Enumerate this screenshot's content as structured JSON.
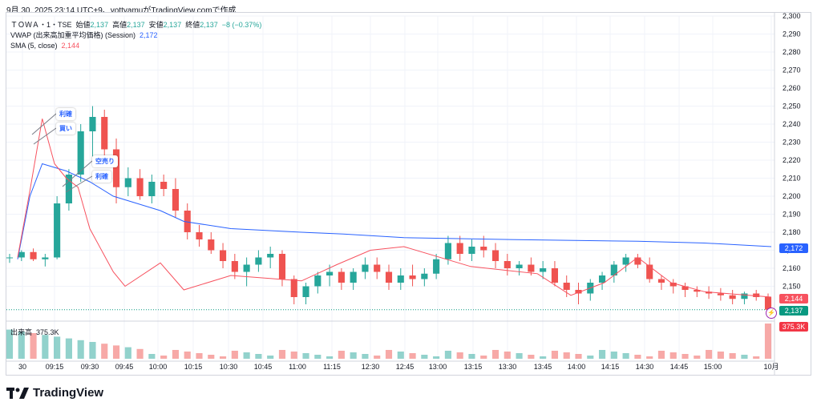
{
  "caption": "9月 30, 2025 23:14 UTC+9、yottyamuがTradingView.comで作成",
  "legend": {
    "symbol": "ＴＯＷＡ・1・TSE",
    "open_label": "始値",
    "open": "2,137",
    "high_label": "高値",
    "high": "2,137",
    "low_label": "安値",
    "low": "2,137",
    "close_label": "終値",
    "close": "2,137",
    "change": "−8 (−0.37%)",
    "vwap_label": "VWAP (出来高加重平均価格) (Session)",
    "vwap_value": "2,172",
    "sma_label": "SMA (5, close)",
    "sma_value": "2,144"
  },
  "y_ticks": [
    "2,300",
    "2,290",
    "2,280",
    "2,270",
    "2,260",
    "2,250",
    "2,240",
    "2,230",
    "2,220",
    "2,210",
    "2,200",
    "2,190",
    "2,180",
    "2,170",
    "2,160",
    "2,150"
  ],
  "x_ticks": [
    "30",
    "09:15",
    "09:30",
    "09:45",
    "10:00",
    "10:15",
    "10:30",
    "10:45",
    "11:00",
    "11:15",
    "12:30",
    "12:45",
    "13:00",
    "13:15",
    "13:30",
    "13:45",
    "14:00",
    "14:15",
    "14:30",
    "14:45",
    "15:00",
    "10月"
  ],
  "price_tags": {
    "vwap": "2,172",
    "sma": "2,144",
    "last": "2,137",
    "volume": "375.3K",
    "vwap_color": "#2962ff",
    "sma_color": "#f7525f",
    "last_color": "#089981",
    "volume_color": "#f23645"
  },
  "annotations": [
    "利確",
    "買い",
    "空売り",
    "利確"
  ],
  "volume": {
    "label": "出来高",
    "value": "375.3K"
  },
  "brand": "TradingView",
  "colors": {
    "up": "#26a69a",
    "down": "#ef5350",
    "vwap": "#2962ff",
    "sma": "#f7525f"
  },
  "chart_data": {
    "type": "candlestick",
    "title": "ＴＯＷＡ・1・TSE",
    "y_range": [
      2140,
      2300
    ],
    "series": [
      {
        "name": "VWAP (出来高加重平均価格) (Session)",
        "x": [
          "09:00",
          "09:05",
          "09:10",
          "09:20",
          "09:30",
          "09:40",
          "09:50",
          "10:00",
          "10:10",
          "10:30",
          "11:00",
          "11:30",
          "12:45",
          "13:30",
          "14:30",
          "15:00",
          "15:30"
        ],
        "values": [
          2165,
          2200,
          2218,
          2214,
          2208,
          2200,
          2196,
          2192,
          2186,
          2182,
          2180,
          2179,
          2177,
          2176,
          2175,
          2174,
          2172
        ]
      },
      {
        "name": "SMA (5, close)",
        "x": [
          "09:00",
          "09:05",
          "09:10",
          "09:15",
          "09:20",
          "09:25",
          "09:30",
          "09:40",
          "09:45",
          "10:00",
          "10:10",
          "10:30",
          "11:00",
          "11:15",
          "12:30",
          "12:45",
          "13:15",
          "13:45",
          "14:00",
          "14:15",
          "14:30",
          "14:45",
          "15:00",
          "15:30"
        ],
        "values": [
          2166,
          2203,
          2243,
          2218,
          2210,
          2205,
          2182,
          2158,
          2150,
          2163,
          2148,
          2156,
          2153,
          2162,
          2170,
          2172,
          2161,
          2157,
          2145,
          2152,
          2166,
          2152,
          2147,
          2144
        ]
      }
    ],
    "candles": [
      [
        2166,
        2168,
        2163,
        2166
      ],
      [
        2166,
        2170,
        2164,
        2169
      ],
      [
        2169,
        2171,
        2164,
        2165
      ],
      [
        2165,
        2168,
        2161,
        2166
      ],
      [
        2166,
        2200,
        2165,
        2196
      ],
      [
        2196,
        2215,
        2192,
        2212
      ],
      [
        2212,
        2240,
        2208,
        2236
      ],
      [
        2236,
        2250,
        2222,
        2244
      ],
      [
        2244,
        2248,
        2220,
        2226
      ],
      [
        2226,
        2232,
        2196,
        2205
      ],
      [
        2205,
        2216,
        2200,
        2210
      ],
      [
        2210,
        2215,
        2198,
        2200
      ],
      [
        2200,
        2212,
        2196,
        2208
      ],
      [
        2208,
        2212,
        2200,
        2204
      ],
      [
        2204,
        2210,
        2188,
        2192
      ],
      [
        2192,
        2196,
        2176,
        2180
      ],
      [
        2180,
        2184,
        2172,
        2176
      ],
      [
        2176,
        2180,
        2168,
        2170
      ],
      [
        2170,
        2174,
        2160,
        2164
      ],
      [
        2164,
        2168,
        2154,
        2158
      ],
      [
        2158,
        2166,
        2150,
        2162
      ],
      [
        2162,
        2170,
        2158,
        2166
      ],
      [
        2166,
        2172,
        2160,
        2168
      ],
      [
        2168,
        2170,
        2150,
        2154
      ],
      [
        2154,
        2156,
        2140,
        2144
      ],
      [
        2144,
        2152,
        2140,
        2150
      ],
      [
        2150,
        2158,
        2146,
        2156
      ],
      [
        2156,
        2162,
        2150,
        2158
      ],
      [
        2158,
        2160,
        2148,
        2152
      ],
      [
        2152,
        2160,
        2148,
        2158
      ],
      [
        2158,
        2166,
        2154,
        2162
      ],
      [
        2162,
        2166,
        2154,
        2158
      ],
      [
        2158,
        2162,
        2148,
        2152
      ],
      [
        2152,
        2160,
        2148,
        2156
      ],
      [
        2156,
        2162,
        2150,
        2154
      ],
      [
        2154,
        2160,
        2150,
        2157
      ],
      [
        2157,
        2168,
        2154,
        2165
      ],
      [
        2165,
        2178,
        2162,
        2174
      ],
      [
        2174,
        2178,
        2164,
        2168
      ],
      [
        2168,
        2176,
        2164,
        2172
      ],
      [
        2172,
        2178,
        2166,
        2170
      ],
      [
        2170,
        2174,
        2160,
        2164
      ],
      [
        2164,
        2168,
        2156,
        2160
      ],
      [
        2160,
        2164,
        2156,
        2162
      ],
      [
        2162,
        2166,
        2156,
        2158
      ],
      [
        2158,
        2164,
        2154,
        2160
      ],
      [
        2160,
        2164,
        2150,
        2152
      ],
      [
        2152,
        2156,
        2144,
        2148
      ],
      [
        2148,
        2152,
        2140,
        2146
      ],
      [
        2146,
        2154,
        2142,
        2152
      ],
      [
        2152,
        2158,
        2148,
        2156
      ],
      [
        2156,
        2164,
        2152,
        2162
      ],
      [
        2162,
        2168,
        2158,
        2166
      ],
      [
        2166,
        2168,
        2160,
        2162
      ],
      [
        2162,
        2166,
        2152,
        2154
      ],
      [
        2154,
        2156,
        2148,
        2152
      ],
      [
        2152,
        2154,
        2146,
        2150
      ],
      [
        2150,
        2152,
        2144,
        2148
      ],
      [
        2148,
        2150,
        2144,
        2147
      ],
      [
        2147,
        2150,
        2143,
        2146
      ],
      [
        2146,
        2149,
        2142,
        2145
      ],
      [
        2145,
        2148,
        2140,
        2143
      ],
      [
        2143,
        2147,
        2140,
        2146
      ],
      [
        2146,
        2148,
        2142,
        2144
      ],
      [
        2144,
        2146,
        2137,
        2137
      ]
    ],
    "volume_last": "375.3K",
    "annotations": [
      {
        "text": "利確",
        "x": "09:10",
        "y": 2248
      },
      {
        "text": "買い",
        "x": "09:10",
        "y": 2232
      },
      {
        "text": "空売り",
        "x": "09:20",
        "y": 2202
      },
      {
        "text": "利確",
        "x": "09:20",
        "y": 2204
      }
    ]
  }
}
